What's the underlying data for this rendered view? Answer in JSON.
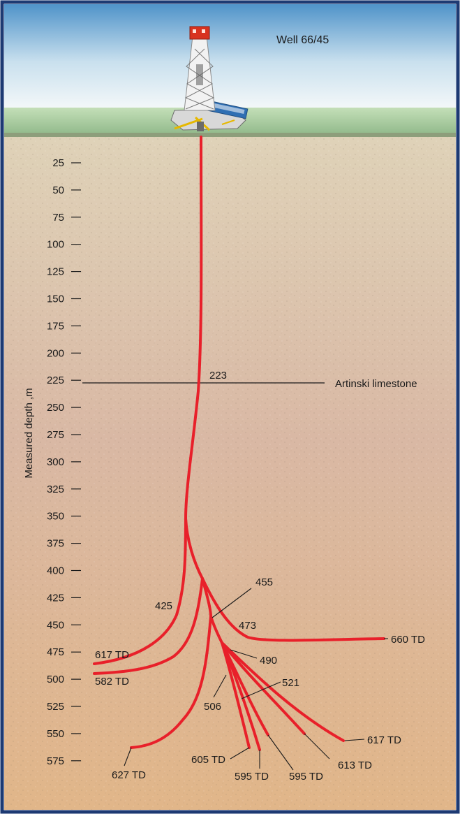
{
  "well_name": "Well 66/45",
  "axis_label": "Measured depth ,m",
  "depth_ticks": [
    "25",
    "50",
    "75",
    "100",
    "125",
    "150",
    "175",
    "200",
    "225",
    "250",
    "275",
    "300",
    "325",
    "350",
    "375",
    "400",
    "425",
    "450",
    "475",
    "500",
    "525",
    "550",
    "575"
  ],
  "formation": {
    "name": "Artinski limestone",
    "depth_label": "223"
  },
  "branch_labels": {
    "kick_425": "425",
    "kick_455": "455",
    "kick_473": "473",
    "kick_490": "490",
    "kick_506": "506",
    "kick_521": "521"
  },
  "td_labels": {
    "td_660": "660 TD",
    "td_617_left": "617 TD",
    "td_582": "582 TD",
    "td_627": "627 TD",
    "td_605": "605 TD",
    "td_595_a": "595 TD",
    "td_595_b": "595 TD",
    "td_613": "613 TD",
    "td_617_right": "617 TD"
  },
  "colors": {
    "sky_top": "#4f93c9",
    "sky_bottom": "#f4f8f9",
    "grass": "#a9cc9b",
    "ground_top": "#dfd2b8",
    "ground_mid": "#dcb79e",
    "ground_bottom": "#e0b888",
    "well_path": "#e8202a",
    "border": "#1d3a73"
  }
}
